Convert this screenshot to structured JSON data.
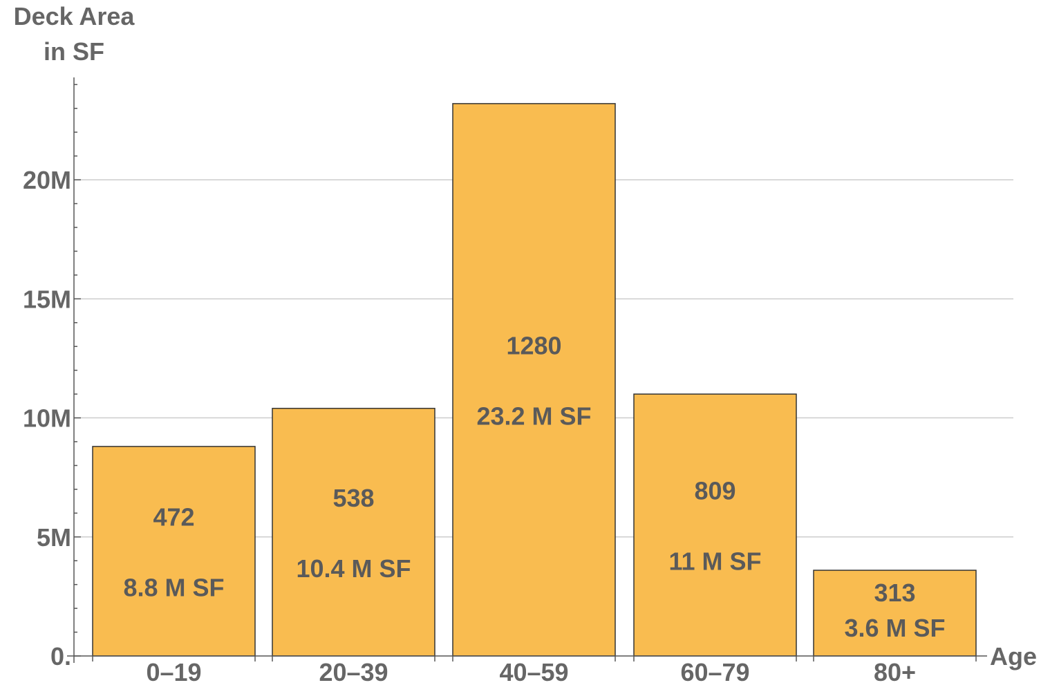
{
  "chart_data": {
    "type": "bar",
    "title": "",
    "ylabel_line1": "Deck Area",
    "ylabel_line2": "in SF",
    "xlabel": "Age",
    "categories": [
      "0–19",
      "20–39",
      "40–59",
      "60–79",
      "80+"
    ],
    "values": [
      8800000,
      10400000,
      23200000,
      11000000,
      3600000
    ],
    "counts": [
      "472",
      "538",
      "1280",
      "809",
      "313"
    ],
    "area_labels": [
      "8.8 M SF",
      "10.4 M SF",
      "23.2 M SF",
      "11 M SF",
      "3.6 M SF"
    ],
    "ylim": [
      0,
      24300000
    ],
    "yticks": [
      0,
      5000000,
      10000000,
      15000000,
      20000000
    ],
    "ytick_labels": [
      "0.",
      "5M",
      "10M",
      "15M",
      "20M"
    ],
    "grid": "horizontal",
    "bar_color": "#F9BC50",
    "bar_edge_color": "#333333",
    "text_color": "#666666"
  }
}
